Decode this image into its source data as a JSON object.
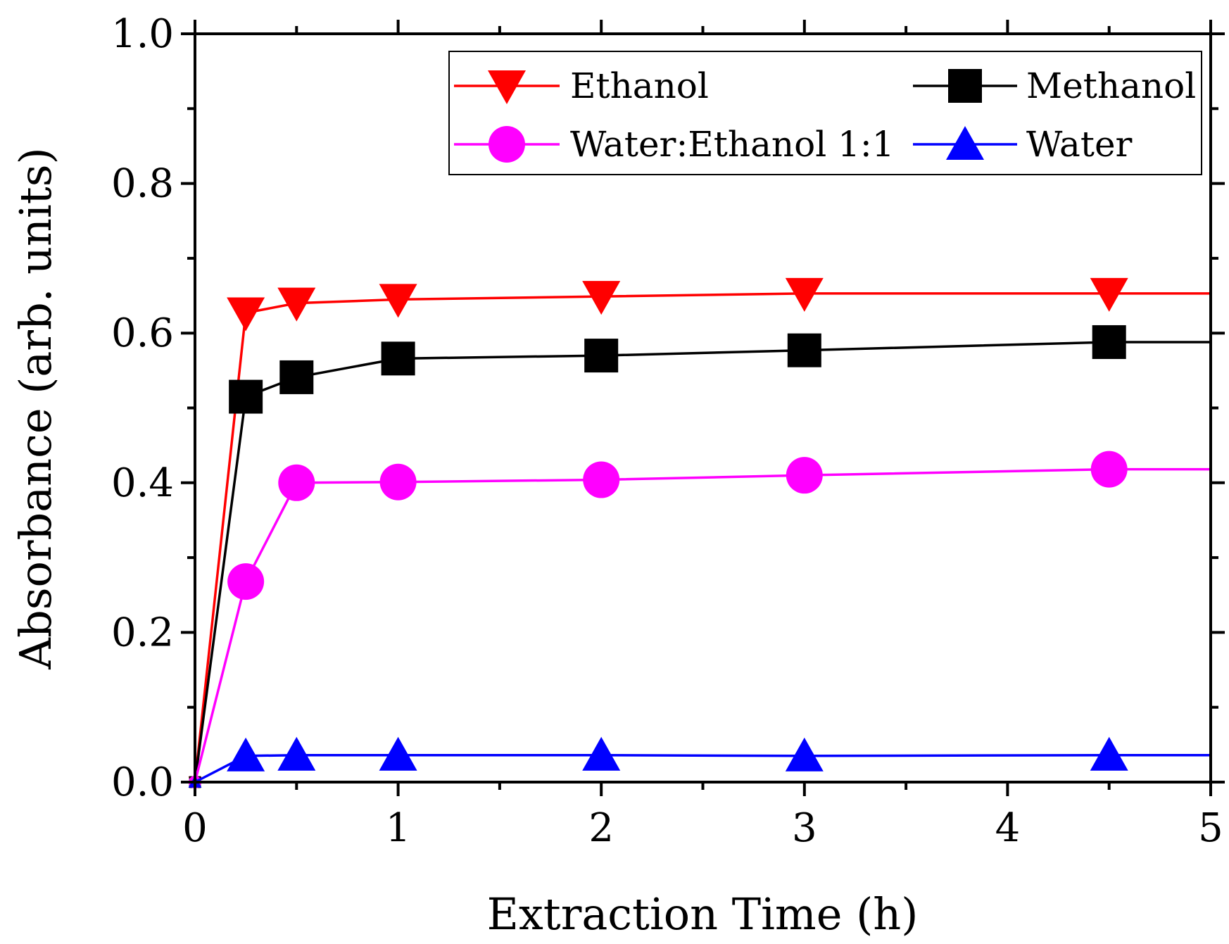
{
  "chart_data": {
    "type": "line",
    "title": "",
    "xlabel": "Extraction Time (h)",
    "ylabel": "Absorbance (arb. units)",
    "xlim": [
      0,
      5
    ],
    "ylim": [
      0,
      1.0
    ],
    "grid": false,
    "legend_position": "top-right",
    "x_ticks": [
      "0",
      "1",
      "2",
      "3",
      "4",
      "5"
    ],
    "y_ticks": [
      "0.0",
      "0.2",
      "0.4",
      "0.6",
      "0.8",
      "1.0"
    ],
    "x_tick_values": [
      0,
      1,
      2,
      3,
      4,
      5
    ],
    "y_tick_values": [
      0,
      0.2,
      0.4,
      0.6,
      0.8,
      1.0
    ],
    "x": [
      0,
      0.25,
      0.5,
      1,
      2,
      3,
      4.5
    ],
    "series": [
      {
        "name": "Ethanol",
        "color": "#ff0000",
        "marker": "triangle-down",
        "values": [
          0.0,
          0.627,
          0.64,
          0.645,
          0.649,
          0.653,
          0.653
        ],
        "extend_to_x": 5
      },
      {
        "name": "Methanol",
        "color": "#000000",
        "marker": "square",
        "values": [
          0.0,
          0.515,
          0.541,
          0.566,
          0.57,
          0.577,
          0.588
        ],
        "extend_to_x": 5
      },
      {
        "name": "Water:Ethanol 1:1",
        "color": "#ff00ff",
        "marker": "circle",
        "values": [
          0.0,
          0.268,
          0.4,
          0.401,
          0.404,
          0.41,
          0.418
        ],
        "extend_to_x": 5
      },
      {
        "name": "Water",
        "color": "#0000ff",
        "marker": "triangle-up",
        "values": [
          0.0,
          0.035,
          0.036,
          0.036,
          0.036,
          0.035,
          0.036
        ],
        "extend_to_x": 5
      }
    ]
  }
}
